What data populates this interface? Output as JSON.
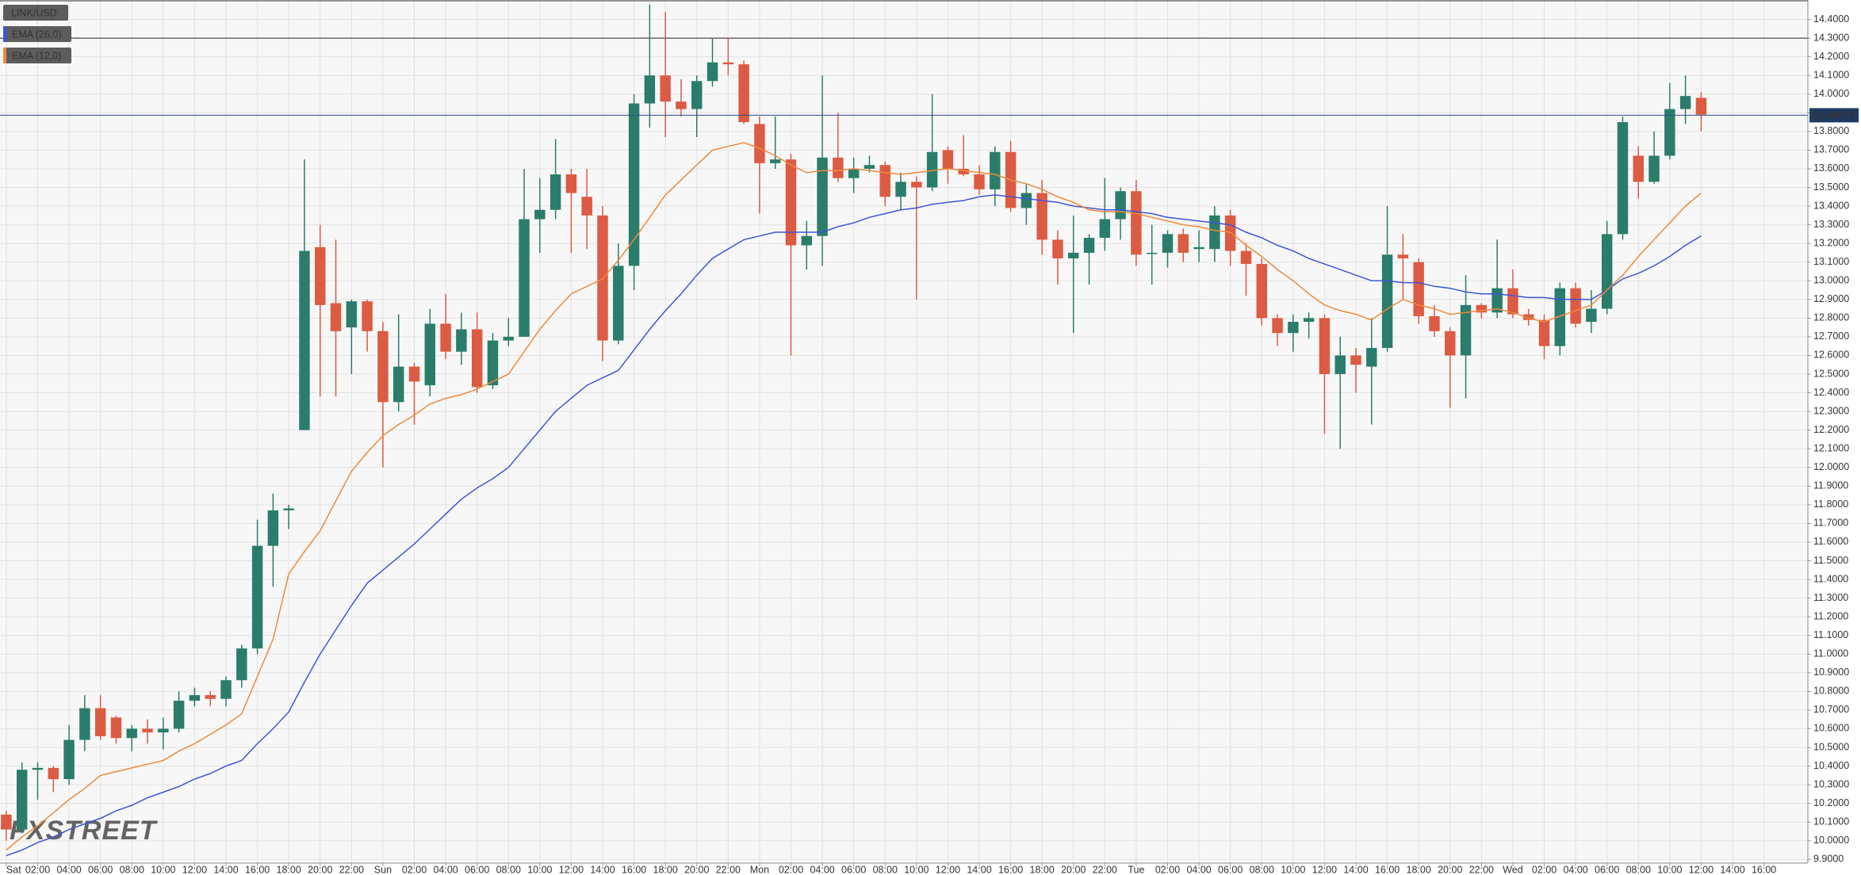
{
  "chart_data": {
    "type": "candlestick",
    "symbol": "LINK/USD",
    "watermark": "FXSTREET",
    "x": [
      0,
      1,
      2,
      3,
      4,
      5,
      6,
      7,
      8,
      9,
      10,
      11,
      12,
      13,
      14,
      15,
      16,
      17,
      18,
      19,
      20,
      21,
      22,
      23,
      24,
      25,
      26,
      27,
      28,
      29,
      30,
      31,
      32,
      33,
      34,
      35,
      36,
      37,
      38,
      39,
      40,
      41,
      42,
      43,
      44,
      45,
      46,
      47,
      48,
      49,
      50,
      51,
      52,
      53,
      54,
      55,
      56,
      57,
      58,
      59,
      60,
      61,
      62,
      63,
      64,
      65,
      66,
      67,
      68,
      69,
      70,
      71,
      72,
      73,
      74,
      75,
      76,
      77,
      78,
      79,
      80,
      81,
      82,
      83,
      84,
      85,
      86,
      87,
      88,
      89,
      90,
      91,
      92,
      93,
      94,
      95,
      96,
      97,
      98,
      99,
      100,
      101,
      102,
      103,
      104,
      105,
      106,
      107,
      108
    ],
    "open": [
      10.14,
      10.06,
      10.38,
      10.39,
      10.33,
      10.54,
      10.71,
      10.66,
      10.55,
      10.6,
      10.58,
      10.6,
      10.75,
      10.78,
      10.76,
      10.86,
      11.03,
      11.58,
      11.77,
      12.2,
      13.18,
      12.88,
      12.75,
      12.89,
      12.73,
      12.35,
      12.54,
      12.44,
      12.77,
      12.62,
      12.74,
      12.44,
      12.68,
      12.7,
      13.33,
      13.38,
      13.57,
      13.45,
      13.35,
      12.68,
      13.08,
      13.95,
      14.1,
      13.96,
      13.92,
      14.07,
      14.17,
      14.16,
      13.84,
      13.63,
      13.65,
      13.19,
      13.24,
      13.66,
      13.55,
      13.6,
      13.62,
      13.45,
      13.53,
      13.5,
      13.7,
      13.6,
      13.57,
      13.49,
      13.69,
      13.39,
      13.47,
      13.22,
      13.12,
      13.15,
      13.23,
      13.33,
      13.48,
      13.15,
      13.15,
      13.25,
      13.17,
      13.17,
      13.35,
      13.16,
      13.09,
      12.8,
      12.72,
      12.78,
      12.8,
      12.5,
      12.6,
      12.54,
      12.64,
      13.14,
      13.1,
      12.81,
      12.73,
      12.6,
      12.87,
      12.83,
      12.96,
      12.82,
      12.79,
      12.65,
      12.96,
      12.78,
      12.85,
      13.25,
      13.67,
      13.53,
      13.67,
      13.92,
      13.98
    ],
    "high": [
      10.16,
      10.42,
      10.42,
      10.4,
      10.62,
      10.78,
      10.78,
      10.67,
      10.62,
      10.65,
      10.66,
      10.8,
      10.82,
      10.8,
      10.88,
      11.05,
      11.72,
      11.86,
      11.8,
      13.65,
      13.3,
      13.22,
      12.9,
      12.9,
      12.78,
      12.82,
      12.56,
      12.85,
      12.93,
      12.83,
      12.83,
      12.72,
      12.8,
      13.6,
      13.55,
      13.76,
      13.6,
      13.6,
      13.4,
      13.2,
      14.0,
      14.48,
      14.44,
      14.08,
      14.1,
      14.3,
      14.3,
      14.18,
      13.88,
      13.88,
      13.68,
      13.32,
      14.1,
      13.9,
      13.66,
      13.67,
      13.64,
      13.58,
      13.56,
      14.0,
      13.72,
      13.78,
      13.62,
      13.72,
      13.75,
      13.52,
      13.54,
      13.27,
      13.35,
      13.25,
      13.55,
      13.5,
      13.54,
      13.3,
      13.27,
      13.28,
      13.27,
      13.4,
      13.38,
      13.2,
      13.12,
      12.82,
      12.82,
      12.83,
      12.82,
      12.7,
      12.64,
      12.8,
      13.4,
      13.25,
      13.12,
      12.87,
      12.75,
      13.03,
      12.88,
      13.22,
      13.06,
      12.85,
      12.82,
      12.99,
      12.99,
      12.95,
      13.32,
      13.88,
      13.72,
      13.8,
      14.06,
      14.1,
      14.01
    ],
    "low": [
      10.0,
      10.04,
      10.22,
      10.26,
      10.3,
      10.48,
      10.54,
      10.52,
      10.48,
      10.52,
      10.49,
      10.58,
      10.72,
      10.72,
      10.72,
      10.82,
      11.0,
      11.36,
      11.67,
      12.2,
      12.38,
      12.38,
      12.5,
      12.62,
      12.0,
      12.3,
      12.23,
      12.38,
      12.58,
      12.55,
      12.4,
      12.42,
      12.65,
      12.7,
      13.15,
      13.33,
      13.15,
      13.17,
      12.57,
      12.66,
      12.95,
      13.82,
      13.77,
      13.88,
      13.77,
      14.04,
      14.1,
      13.84,
      13.36,
      13.6,
      12.6,
      13.06,
      13.08,
      13.53,
      13.47,
      13.58,
      13.4,
      13.38,
      12.9,
      13.48,
      13.52,
      13.56,
      13.46,
      13.4,
      13.37,
      13.3,
      13.14,
      12.98,
      12.72,
      12.98,
      13.16,
      13.22,
      13.08,
      12.98,
      13.07,
      13.1,
      13.1,
      13.1,
      13.08,
      12.92,
      12.76,
      12.65,
      12.62,
      12.69,
      12.18,
      12.1,
      12.4,
      12.23,
      12.62,
      12.9,
      12.77,
      12.7,
      12.32,
      12.37,
      12.8,
      12.8,
      12.8,
      12.76,
      12.58,
      12.6,
      12.75,
      12.72,
      12.82,
      13.22,
      13.44,
      13.52,
      13.65,
      13.84,
      13.8
    ],
    "close": [
      10.06,
      10.38,
      10.39,
      10.33,
      10.54,
      10.71,
      10.56,
      10.55,
      10.6,
      10.58,
      10.6,
      10.75,
      10.78,
      10.76,
      10.86,
      11.03,
      11.58,
      11.77,
      11.78,
      13.16,
      12.87,
      12.73,
      12.89,
      12.73,
      12.35,
      12.54,
      12.46,
      12.77,
      12.62,
      12.74,
      12.43,
      12.68,
      12.7,
      13.33,
      13.38,
      13.57,
      13.47,
      13.35,
      12.68,
      13.08,
      13.95,
      14.1,
      13.96,
      13.92,
      14.07,
      14.17,
      14.16,
      13.85,
      13.63,
      13.65,
      13.19,
      13.24,
      13.66,
      13.55,
      13.6,
      13.62,
      13.45,
      13.53,
      13.5,
      13.69,
      13.6,
      13.57,
      13.49,
      13.69,
      13.39,
      13.47,
      13.22,
      13.12,
      13.15,
      13.23,
      13.33,
      13.48,
      13.14,
      13.15,
      13.25,
      13.15,
      13.18,
      13.35,
      13.16,
      13.09,
      12.8,
      12.72,
      12.78,
      12.8,
      12.5,
      12.6,
      12.55,
      12.64,
      13.14,
      13.12,
      12.81,
      12.73,
      12.6,
      12.87,
      12.83,
      12.96,
      12.82,
      12.79,
      12.65,
      12.96,
      12.77,
      12.85,
      13.25,
      13.85,
      13.53,
      13.67,
      13.92,
      13.99,
      13.89
    ],
    "up_color": "#2b7d6b",
    "down_color": "#dc5b43",
    "series": [
      {
        "name": "EMA (26,0)",
        "color": "#3e55d8",
        "values": [
          9.92,
          9.95,
          9.99,
          10.02,
          10.06,
          10.09,
          10.12,
          10.16,
          10.19,
          10.23,
          10.26,
          10.29,
          10.33,
          10.36,
          10.4,
          10.43,
          10.52,
          10.6,
          10.69,
          10.85,
          11.0,
          11.13,
          11.26,
          11.38,
          11.45,
          11.52,
          11.59,
          11.67,
          11.75,
          11.83,
          11.89,
          11.94,
          12.0,
          12.1,
          12.2,
          12.3,
          12.37,
          12.44,
          12.48,
          12.52,
          12.63,
          12.74,
          12.84,
          12.93,
          13.03,
          13.12,
          13.17,
          13.22,
          13.24,
          13.26,
          13.26,
          13.26,
          13.26,
          13.29,
          13.31,
          13.34,
          13.36,
          13.38,
          13.39,
          13.41,
          13.42,
          13.43,
          13.45,
          13.46,
          13.45,
          13.44,
          13.43,
          13.42,
          13.4,
          13.39,
          13.38,
          13.38,
          13.37,
          13.36,
          13.34,
          13.33,
          13.32,
          13.31,
          13.3,
          13.26,
          13.23,
          13.19,
          13.16,
          13.12,
          13.09,
          13.06,
          13.03,
          13.0,
          13.0,
          12.99,
          12.99,
          12.97,
          12.96,
          12.94,
          12.93,
          12.93,
          12.92,
          12.91,
          12.91,
          12.9,
          12.9,
          12.9,
          12.95,
          13.01,
          13.04,
          13.08,
          13.13,
          13.19,
          13.24
        ]
      },
      {
        "name": "EMA (12,0)",
        "color": "#ee8a3a",
        "values": [
          9.95,
          10.02,
          10.08,
          10.15,
          10.22,
          10.28,
          10.35,
          10.37,
          10.39,
          10.41,
          10.43,
          10.48,
          10.52,
          10.57,
          10.62,
          10.68,
          10.88,
          11.08,
          11.43,
          11.55,
          11.66,
          11.82,
          11.98,
          12.08,
          12.17,
          12.23,
          12.28,
          12.34,
          12.37,
          12.39,
          12.42,
          12.46,
          12.5,
          12.62,
          12.74,
          12.84,
          12.93,
          12.97,
          13.01,
          13.11,
          13.22,
          13.34,
          13.46,
          13.54,
          13.62,
          13.7,
          13.72,
          13.74,
          13.71,
          13.67,
          13.62,
          13.58,
          13.59,
          13.59,
          13.6,
          13.59,
          13.58,
          13.57,
          13.58,
          13.59,
          13.6,
          13.59,
          13.58,
          13.57,
          13.54,
          13.52,
          13.49,
          13.45,
          13.42,
          13.38,
          13.37,
          13.37,
          13.36,
          13.34,
          13.32,
          13.3,
          13.29,
          13.27,
          13.26,
          13.19,
          13.13,
          13.06,
          13.0,
          12.93,
          12.87,
          12.84,
          12.82,
          12.79,
          12.85,
          12.9,
          12.87,
          12.85,
          12.82,
          12.83,
          12.84,
          12.85,
          12.83,
          12.8,
          12.78,
          12.81,
          12.84,
          12.87,
          12.95,
          13.03,
          13.13,
          13.22,
          13.31,
          13.4,
          13.47
        ]
      }
    ],
    "hline": 14.3,
    "last_price": 13.88675,
    "grid": true,
    "xlim": [
      -0.4,
      114.8
    ],
    "ylim": [
      9.88,
      14.5
    ],
    "xticks": [
      {
        "value": 0,
        "label": "Sat"
      },
      {
        "value": 2,
        "label": "02:00"
      },
      {
        "value": 4,
        "label": "04:00"
      },
      {
        "value": 6,
        "label": "06:00"
      },
      {
        "value": 8,
        "label": "08:00"
      },
      {
        "value": 10,
        "label": "10:00"
      },
      {
        "value": 12,
        "label": "12:00"
      },
      {
        "value": 14,
        "label": "14:00"
      },
      {
        "value": 16,
        "label": "16:00"
      },
      {
        "value": 18,
        "label": "18:00"
      },
      {
        "value": 20,
        "label": "20:00"
      },
      {
        "value": 22,
        "label": "22:00"
      },
      {
        "value": 24,
        "label": "Sun"
      },
      {
        "value": 26,
        "label": "02:00"
      },
      {
        "value": 28,
        "label": "04:00"
      },
      {
        "value": 30,
        "label": "06:00"
      },
      {
        "value": 32,
        "label": "08:00"
      },
      {
        "value": 34,
        "label": "10:00"
      },
      {
        "value": 36,
        "label": "12:00"
      },
      {
        "value": 38,
        "label": "14:00"
      },
      {
        "value": 40,
        "label": "16:00"
      },
      {
        "value": 42,
        "label": "18:00"
      },
      {
        "value": 44,
        "label": "20:00"
      },
      {
        "value": 46,
        "label": "22:00"
      },
      {
        "value": 48,
        "label": "Mon"
      },
      {
        "value": 50,
        "label": "02:00"
      },
      {
        "value": 52,
        "label": "04:00"
      },
      {
        "value": 54,
        "label": "06:00"
      },
      {
        "value": 56,
        "label": "08:00"
      },
      {
        "value": 58,
        "label": "10:00"
      },
      {
        "value": 60,
        "label": "12:00"
      },
      {
        "value": 62,
        "label": "14:00"
      },
      {
        "value": 64,
        "label": "16:00"
      },
      {
        "value": 66,
        "label": "18:00"
      },
      {
        "value": 68,
        "label": "20:00"
      },
      {
        "value": 70,
        "label": "22:00"
      },
      {
        "value": 72,
        "label": "Tue"
      },
      {
        "value": 74,
        "label": "02:00"
      },
      {
        "value": 76,
        "label": "04:00"
      },
      {
        "value": 78,
        "label": "06:00"
      },
      {
        "value": 80,
        "label": "08:00"
      },
      {
        "value": 82,
        "label": "10:00"
      },
      {
        "value": 84,
        "label": "12:00"
      },
      {
        "value": 86,
        "label": "14:00"
      },
      {
        "value": 88,
        "label": "16:00"
      },
      {
        "value": 90,
        "label": "18:00"
      },
      {
        "value": 92,
        "label": "20:00"
      },
      {
        "value": 94,
        "label": "22:00"
      },
      {
        "value": 96,
        "label": "Wed"
      },
      {
        "value": 98,
        "label": "02:00"
      },
      {
        "value": 100,
        "label": "04:00"
      },
      {
        "value": 102,
        "label": "06:00"
      },
      {
        "value": 104,
        "label": "08:00"
      },
      {
        "value": 106,
        "label": "10:00"
      },
      {
        "value": 108,
        "label": "12:00"
      },
      {
        "value": 110,
        "label": "14:00"
      },
      {
        "value": 112,
        "label": "16:00"
      }
    ],
    "yticks": [
      {
        "value": 9.9,
        "label": "9.9000"
      },
      {
        "value": 10.0,
        "label": "10.0000"
      },
      {
        "value": 10.1,
        "label": "10.1000"
      },
      {
        "value": 10.2,
        "label": "10.2000"
      },
      {
        "value": 10.3,
        "label": "10.3000"
      },
      {
        "value": 10.4,
        "label": "10.4000"
      },
      {
        "value": 10.5,
        "label": "10.5000"
      },
      {
        "value": 10.6,
        "label": "10.6000"
      },
      {
        "value": 10.7,
        "label": "10.7000"
      },
      {
        "value": 10.8,
        "label": "10.8000"
      },
      {
        "value": 10.9,
        "label": "10.9000"
      },
      {
        "value": 11.0,
        "label": "11.0000"
      },
      {
        "value": 11.1,
        "label": "11.1000"
      },
      {
        "value": 11.2,
        "label": "11.2000"
      },
      {
        "value": 11.3,
        "label": "11.3000"
      },
      {
        "value": 11.4,
        "label": "11.4000"
      },
      {
        "value": 11.5,
        "label": "11.5000"
      },
      {
        "value": 11.6,
        "label": "11.6000"
      },
      {
        "value": 11.7,
        "label": "11.7000"
      },
      {
        "value": 11.8,
        "label": "11.8000"
      },
      {
        "value": 11.9,
        "label": "11.9000"
      },
      {
        "value": 12.0,
        "label": "12.0000"
      },
      {
        "value": 12.1,
        "label": "12.1000"
      },
      {
        "value": 12.2,
        "label": "12.2000"
      },
      {
        "value": 12.3,
        "label": "12.3000"
      },
      {
        "value": 12.4,
        "label": "12.4000"
      },
      {
        "value": 12.5,
        "label": "12.5000"
      },
      {
        "value": 12.6,
        "label": "12.6000"
      },
      {
        "value": 12.7,
        "label": "12.7000"
      },
      {
        "value": 12.8,
        "label": "12.8000"
      },
      {
        "value": 12.9,
        "label": "12.9000"
      },
      {
        "value": 13.0,
        "label": "13.0000"
      },
      {
        "value": 13.1,
        "label": "13.1000"
      },
      {
        "value": 13.2,
        "label": "13.2000"
      },
      {
        "value": 13.3,
        "label": "13.3000"
      },
      {
        "value": 13.4,
        "label": "13.4000"
      },
      {
        "value": 13.5,
        "label": "13.5000"
      },
      {
        "value": 13.6,
        "label": "13.6000"
      },
      {
        "value": 13.7,
        "label": "13.7000"
      },
      {
        "value": 13.8,
        "label": "13.8000"
      },
      {
        "value": 13.9,
        "label": "13.9000"
      },
      {
        "value": 14.0,
        "label": "14.0000"
      },
      {
        "value": 14.1,
        "label": "14.1000"
      },
      {
        "value": 14.2,
        "label": "14.2000"
      },
      {
        "value": 14.3,
        "label": "14.3000"
      },
      {
        "value": 14.4,
        "label": "14.4000"
      }
    ]
  }
}
